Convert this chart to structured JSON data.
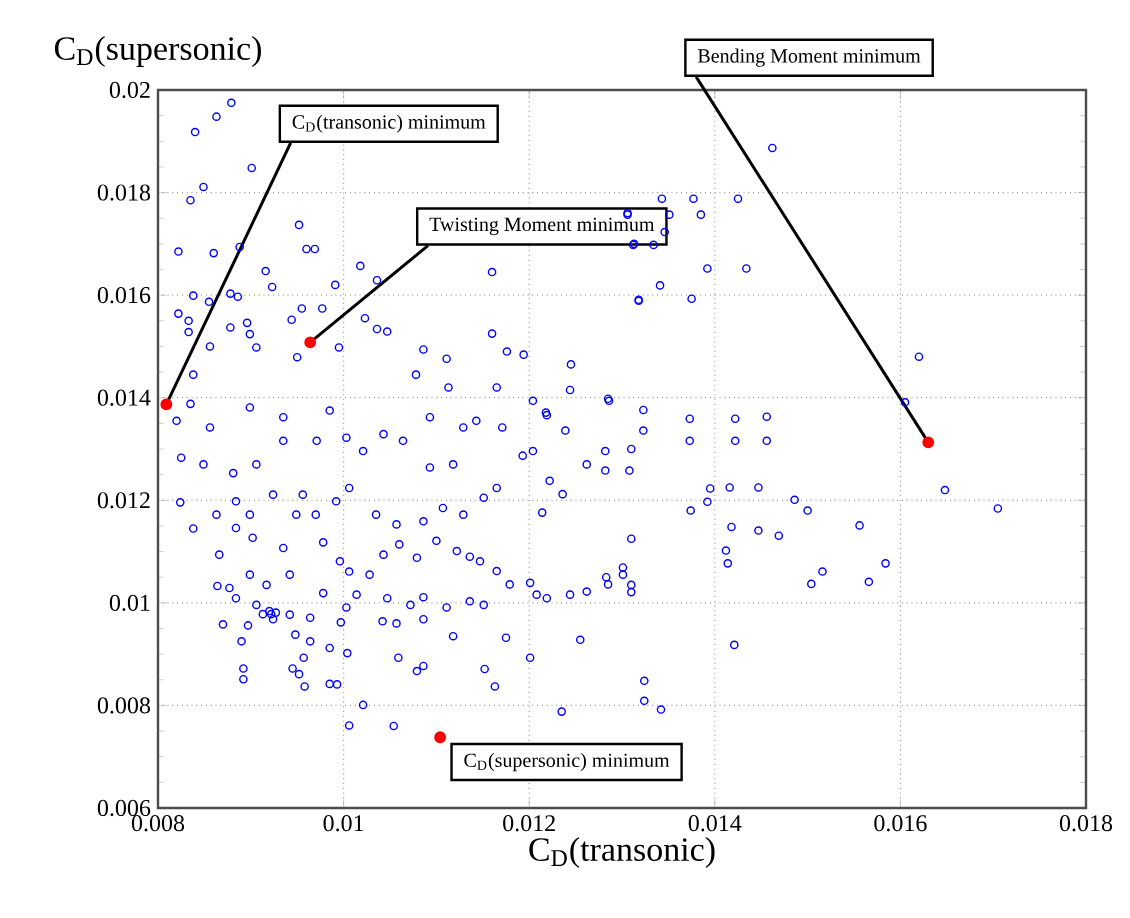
{
  "chart_data": {
    "type": "scatter",
    "xlabel": "C$_{D}$(transonic)",
    "ylabel": "C$_{D}$(supersonic)",
    "xlim": [
      0.008,
      0.018
    ],
    "ylim": [
      0.006,
      0.02
    ],
    "xticks": [
      0.008,
      0.01,
      0.012,
      0.014,
      0.016,
      0.018
    ],
    "yticks": [
      0.006,
      0.008,
      0.01,
      0.012,
      0.014,
      0.016,
      0.018,
      0.02
    ],
    "grid": true,
    "marker": "circle",
    "series": [
      {
        "color": "#0000ff",
        "x": [
          0.00879,
          0.00863,
          0.0084,
          0.00901,
          0.00849,
          0.00835,
          0.00822,
          0.0086,
          0.00888,
          0.00952,
          0.0096,
          0.00969,
          0.00916,
          0.00923,
          0.01018,
          0.00991,
          0.01036,
          0.00838,
          0.00878,
          0.00886,
          0.00822,
          0.00855,
          0.00833,
          0.00833,
          0.00896,
          0.00944,
          0.00955,
          0.00977,
          0.01023,
          0.01036,
          0.01047,
          0.01086,
          0.01111,
          0.0116,
          0.0116,
          0.01176,
          0.01194,
          0.01245,
          0.01244,
          0.01306,
          0.01313,
          0.01318,
          0.00856,
          0.00838,
          0.00878,
          0.00899,
          0.00906,
          0.0095,
          0.00995,
          0.01078,
          0.01113,
          0.01165,
          0.01204,
          0.01219,
          0.01286,
          0.01462,
          0.01343,
          0.01377,
          0.01425,
          0.01306,
          0.01351,
          0.01385,
          0.01346,
          0.01312,
          0.01334,
          0.01392,
          0.01434,
          0.01341,
          0.01318,
          0.01375,
          0.0162,
          0.01605,
          0.01285,
          0.01323,
          0.01373,
          0.01422,
          0.01456,
          0.01323,
          0.01373,
          0.01422,
          0.01456,
          0.01282,
          0.01308,
          0.01374,
          0.01392,
          0.01395,
          0.01416,
          0.01447,
          0.01486,
          0.015,
          0.01648,
          0.01705,
          0.01418,
          0.01447,
          0.01469,
          0.01556,
          0.0131,
          0.01412,
          0.01414,
          0.01285,
          0.01301,
          0.0131,
          0.01504,
          0.01516,
          0.01566,
          0.01584,
          0.01421,
          0.01324,
          0.01342,
          0.01006,
          0.01054,
          0.01021,
          0.01235,
          0.01324,
          0.01152,
          0.01163,
          0.01201,
          0.01255,
          0.01079,
          0.01086,
          0.01059,
          0.00985,
          0.00993,
          0.00892,
          0.00892,
          0.00945,
          0.00952,
          0.00958,
          0.00957,
          0.0087,
          0.0089,
          0.00897,
          0.00997,
          0.01004,
          0.01042,
          0.01057,
          0.01086,
          0.01118,
          0.01175,
          0.00948,
          0.00964,
          0.00985,
          0.00922,
          0.00924,
          0.00864,
          0.00838,
          0.00824,
          0.0082,
          0.00825,
          0.00849,
          0.00881,
          0.00906,
          0.00924,
          0.00949,
          0.00935,
          0.00971,
          0.01003,
          0.01021,
          0.01043,
          0.01064,
          0.01093,
          0.01118,
          0.01143,
          0.01171,
          0.01193,
          0.01204,
          0.01222,
          0.01236,
          0.01214,
          0.01239,
          0.01218,
          0.01282,
          0.0131,
          0.01262,
          0.01301,
          0.0131,
          0.01283,
          0.01262,
          0.01244,
          0.01208,
          0.01219,
          0.01201,
          0.01179,
          0.01165,
          0.01147,
          0.01136,
          0.01151,
          0.01111,
          0.01086,
          0.01072,
          0.01047,
          0.01014,
          0.01003,
          0.00978,
          0.00964,
          0.00942,
          0.0092,
          0.00906,
          0.00884,
          0.00913,
          0.00927,
          0.00899,
          0.00917,
          0.00877,
          0.00866,
          0.00884,
          0.00902,
          0.00978,
          0.00996,
          0.01006,
          0.01028,
          0.01043,
          0.0106,
          0.01079,
          0.011,
          0.01122,
          0.01136,
          0.01035,
          0.01057,
          0.01086,
          0.01107,
          0.01129,
          0.01151,
          0.01165,
          0.01006,
          0.00992,
          0.0097,
          0.00956,
          0.00935,
          0.00942,
          0.00899,
          0.00863,
          0.00884,
          0.00856,
          0.00899,
          0.00935,
          0.00985,
          0.01093,
          0.01129,
          0.00835
        ],
        "values": [
          0.01975,
          0.01948,
          0.01918,
          0.01848,
          0.01811,
          0.01785,
          0.01685,
          0.01682,
          0.01694,
          0.01737,
          0.0169,
          0.0169,
          0.01647,
          0.01616,
          0.01657,
          0.0162,
          0.01629,
          0.01599,
          0.01603,
          0.01597,
          0.01564,
          0.01587,
          0.0155,
          0.01528,
          0.01546,
          0.01552,
          0.01574,
          0.01574,
          0.01555,
          0.01534,
          0.01529,
          0.01494,
          0.01476,
          0.01645,
          0.01525,
          0.0149,
          0.01484,
          0.01465,
          0.01415,
          0.0176,
          0.017,
          0.01591,
          0.015,
          0.01445,
          0.01537,
          0.01524,
          0.01498,
          0.01479,
          0.01498,
          0.01445,
          0.0142,
          0.0142,
          0.01394,
          0.01366,
          0.01394,
          0.01887,
          0.01788,
          0.01788,
          0.01788,
          0.01757,
          0.01757,
          0.01757,
          0.01723,
          0.01698,
          0.01698,
          0.01652,
          0.01652,
          0.01619,
          0.01589,
          0.01593,
          0.0148,
          0.01391,
          0.01398,
          0.01376,
          0.01359,
          0.01359,
          0.01363,
          0.01336,
          0.01316,
          0.01316,
          0.01316,
          0.01258,
          0.01258,
          0.0118,
          0.01197,
          0.01223,
          0.01225,
          0.01225,
          0.01201,
          0.0118,
          0.0122,
          0.01184,
          0.01148,
          0.01141,
          0.01131,
          0.01151,
          0.01125,
          0.01102,
          0.01077,
          0.01036,
          0.01055,
          0.01021,
          0.01037,
          0.01061,
          0.01041,
          0.01077,
          0.00918,
          0.00809,
          0.00792,
          0.00761,
          0.0076,
          0.00801,
          0.00788,
          0.00848,
          0.00871,
          0.00837,
          0.00893,
          0.00928,
          0.00867,
          0.00877,
          0.00893,
          0.00842,
          0.00841,
          0.00872,
          0.00851,
          0.00872,
          0.00861,
          0.00837,
          0.00893,
          0.00958,
          0.00925,
          0.00956,
          0.00962,
          0.00902,
          0.00964,
          0.0096,
          0.00968,
          0.00935,
          0.00932,
          0.00938,
          0.00925,
          0.00912,
          0.00978,
          0.00968,
          0.01033,
          0.01145,
          0.01196,
          0.01355,
          0.01283,
          0.0127,
          0.01253,
          0.0127,
          0.01211,
          0.01172,
          0.01316,
          0.01316,
          0.01322,
          0.01296,
          0.01329,
          0.01316,
          0.01264,
          0.0127,
          0.01355,
          0.01342,
          0.01287,
          0.01296,
          0.01238,
          0.01212,
          0.01176,
          0.01336,
          0.01371,
          0.01296,
          0.013,
          0.0127,
          0.01069,
          0.01035,
          0.0105,
          0.01022,
          0.01016,
          0.01016,
          0.01009,
          0.01039,
          0.01036,
          0.01062,
          0.01081,
          0.01003,
          0.00996,
          0.00991,
          0.01011,
          0.00996,
          0.01009,
          0.01016,
          0.00991,
          0.01019,
          0.00971,
          0.00977,
          0.00984,
          0.00996,
          0.01009,
          0.00978,
          0.00981,
          0.01055,
          0.01035,
          0.01029,
          0.01094,
          0.01146,
          0.01127,
          0.01118,
          0.01081,
          0.01061,
          0.01055,
          0.01094,
          0.01114,
          0.01088,
          0.01121,
          0.01101,
          0.0109,
          0.01172,
          0.01153,
          0.01159,
          0.01185,
          0.01172,
          0.01205,
          0.01224,
          0.01224,
          0.01198,
          0.01172,
          0.01211,
          0.01107,
          0.01055,
          0.01172,
          0.01172,
          0.01198,
          0.01342,
          0.01381,
          0.01362,
          0.01375,
          0.01362,
          0.01342,
          0.01388
        ]
      },
      {
        "color": "#ff0000",
        "x": [
          0.00809,
          0.00964,
          0.0163,
          0.01104
        ],
        "values": [
          0.01387,
          0.01508,
          0.01313,
          0.00738
        ]
      }
    ],
    "annotations": [
      {
        "text": "C$_{D}$(transonic) minimum",
        "x": 0.00809,
        "y": 0.01387
      },
      {
        "text": "Twisting Moment minimum",
        "x": 0.00964,
        "y": 0.01508
      },
      {
        "text": "Bending Moment minimum",
        "x": 0.0163,
        "y": 0.01313
      },
      "C$_{D}$(supersonic) minimum"
    ]
  }
}
